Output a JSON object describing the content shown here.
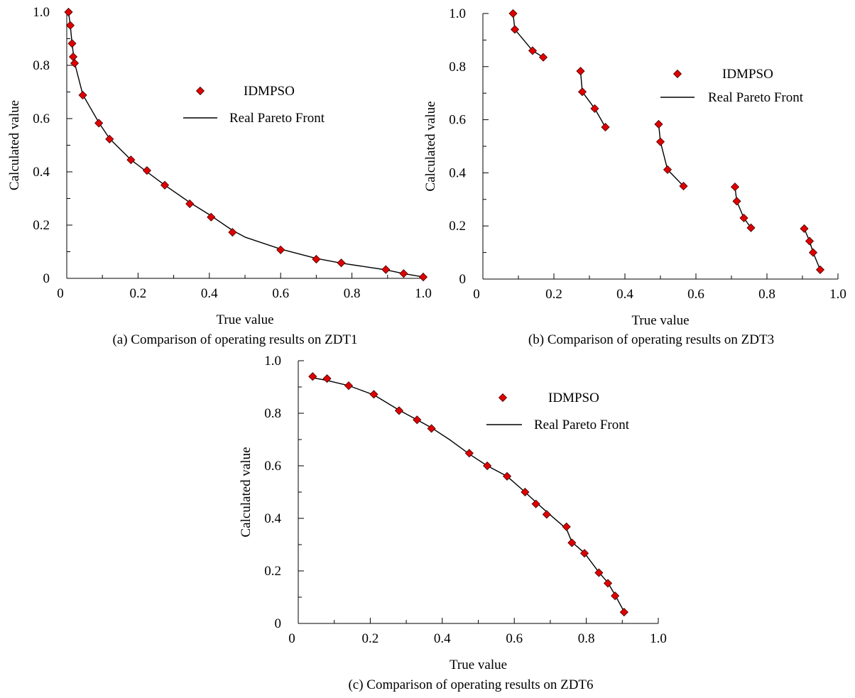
{
  "chart_data": [
    {
      "id": "zdt1",
      "type": "scatter",
      "caption": "(a) Comparison of operating results on ZDT1",
      "xlabel": "True value",
      "ylabel": "Calculated value",
      "xlim": [
        0,
        1.0
      ],
      "ylim": [
        0,
        1.0
      ],
      "xticks": [
        "0",
        "0.2",
        "0.4",
        "0.6",
        "0.8",
        "1.0"
      ],
      "yticks": [
        "0",
        "0.2",
        "0.4",
        "0.6",
        "0.8",
        "1.0"
      ],
      "grid": false,
      "legend_position": "upper-middle",
      "series": [
        {
          "name": "IDMPSO",
          "marker": "diamond",
          "color": "#e00000",
          "x": [
            0.005,
            0.01,
            0.015,
            0.018,
            0.022,
            0.045,
            0.09,
            0.12,
            0.18,
            0.225,
            0.275,
            0.345,
            0.405,
            0.465,
            0.6,
            0.7,
            0.77,
            0.895,
            0.945,
            1.0
          ],
          "y": [
            1.0,
            0.95,
            0.882,
            0.832,
            0.808,
            0.688,
            0.583,
            0.523,
            0.445,
            0.405,
            0.35,
            0.28,
            0.23,
            0.173,
            0.107,
            0.072,
            0.058,
            0.033,
            0.018,
            0.005
          ]
        },
        {
          "name": "Real Pareto Front",
          "marker": "line",
          "color": "#000000",
          "x": [
            0.005,
            0.01,
            0.015,
            0.022,
            0.045,
            0.09,
            0.12,
            0.18,
            0.225,
            0.275,
            0.345,
            0.405,
            0.465,
            0.5,
            0.6,
            0.7,
            0.77,
            0.895,
            0.945,
            1.0
          ],
          "y": [
            1.0,
            0.95,
            0.88,
            0.81,
            0.69,
            0.585,
            0.525,
            0.445,
            0.4,
            0.35,
            0.285,
            0.235,
            0.18,
            0.155,
            0.11,
            0.075,
            0.057,
            0.032,
            0.018,
            0.005
          ]
        }
      ]
    },
    {
      "id": "zdt3",
      "type": "scatter",
      "caption": "(b) Comparison of operating results on ZDT3",
      "xlabel": "True value",
      "ylabel": "Calculated value",
      "xlim": [
        0,
        1.0
      ],
      "ylim": [
        0,
        1.0
      ],
      "xticks": [
        "0",
        "0.2",
        "0.4",
        "0.6",
        "0.8",
        "1.0"
      ],
      "yticks": [
        "0",
        "0.2",
        "0.4",
        "0.6",
        "0.8",
        "1.0"
      ],
      "grid": false,
      "legend_position": "upper-right",
      "series": [
        {
          "name": "IDMPSO",
          "marker": "diamond",
          "color": "#e00000",
          "x": [
            0.085,
            0.09,
            0.14,
            0.17,
            0.275,
            0.28,
            0.315,
            0.345,
            0.495,
            0.5,
            0.52,
            0.565,
            0.71,
            0.715,
            0.735,
            0.755,
            0.905,
            0.92,
            0.93,
            0.95
          ],
          "y": [
            1.0,
            0.94,
            0.86,
            0.835,
            0.783,
            0.705,
            0.642,
            0.572,
            0.583,
            0.517,
            0.412,
            0.35,
            0.347,
            0.293,
            0.23,
            0.193,
            0.19,
            0.143,
            0.1,
            0.035
          ]
        },
        {
          "name": "Real Pareto Front",
          "marker": "line",
          "color": "#000000",
          "segments": [
            {
              "x": [
                0.085,
                0.09,
                0.14,
                0.17
              ],
              "y": [
                1.0,
                0.94,
                0.86,
                0.835
              ]
            },
            {
              "x": [
                0.275,
                0.28,
                0.315,
                0.345
              ],
              "y": [
                0.783,
                0.705,
                0.642,
                0.572
              ]
            },
            {
              "x": [
                0.495,
                0.5,
                0.52,
                0.565
              ],
              "y": [
                0.583,
                0.517,
                0.412,
                0.35
              ]
            },
            {
              "x": [
                0.71,
                0.715,
                0.735,
                0.755
              ],
              "y": [
                0.347,
                0.293,
                0.23,
                0.193
              ]
            },
            {
              "x": [
                0.905,
                0.92,
                0.93,
                0.95
              ],
              "y": [
                0.19,
                0.143,
                0.1,
                0.035
              ]
            }
          ]
        }
      ]
    },
    {
      "id": "zdt6",
      "type": "scatter",
      "caption": "(c) Comparison of operating results on ZDT6",
      "xlabel": "True value",
      "ylabel": "Calculated value",
      "xlim": [
        0,
        1.0
      ],
      "ylim": [
        0,
        1.0
      ],
      "xticks": [
        "0",
        "0.2",
        "0.4",
        "0.6",
        "0.8",
        "1.0"
      ],
      "yticks": [
        "0",
        "0.2",
        "0.4",
        "0.6",
        "0.8",
        "1.0"
      ],
      "grid": false,
      "legend_position": "upper-right",
      "series": [
        {
          "name": "IDMPSO",
          "marker": "diamond",
          "color": "#e00000",
          "x": [
            0.04,
            0.08,
            0.14,
            0.21,
            0.28,
            0.33,
            0.37,
            0.475,
            0.525,
            0.58,
            0.63,
            0.66,
            0.69,
            0.745,
            0.76,
            0.795,
            0.835,
            0.86,
            0.88,
            0.905
          ],
          "y": [
            0.94,
            0.932,
            0.905,
            0.872,
            0.81,
            0.775,
            0.742,
            0.648,
            0.6,
            0.56,
            0.5,
            0.455,
            0.415,
            0.368,
            0.307,
            0.267,
            0.193,
            0.153,
            0.105,
            0.043
          ]
        },
        {
          "name": "Real Pareto Front",
          "marker": "line",
          "color": "#000000",
          "x": [
            0.04,
            0.08,
            0.14,
            0.21,
            0.28,
            0.33,
            0.37,
            0.42,
            0.475,
            0.525,
            0.58,
            0.63,
            0.66,
            0.69,
            0.745,
            0.76,
            0.795,
            0.835,
            0.86,
            0.88,
            0.905
          ],
          "y": [
            0.935,
            0.925,
            0.905,
            0.87,
            0.812,
            0.775,
            0.745,
            0.7,
            0.645,
            0.6,
            0.56,
            0.5,
            0.462,
            0.425,
            0.36,
            0.31,
            0.268,
            0.195,
            0.155,
            0.108,
            0.045
          ]
        }
      ]
    }
  ]
}
